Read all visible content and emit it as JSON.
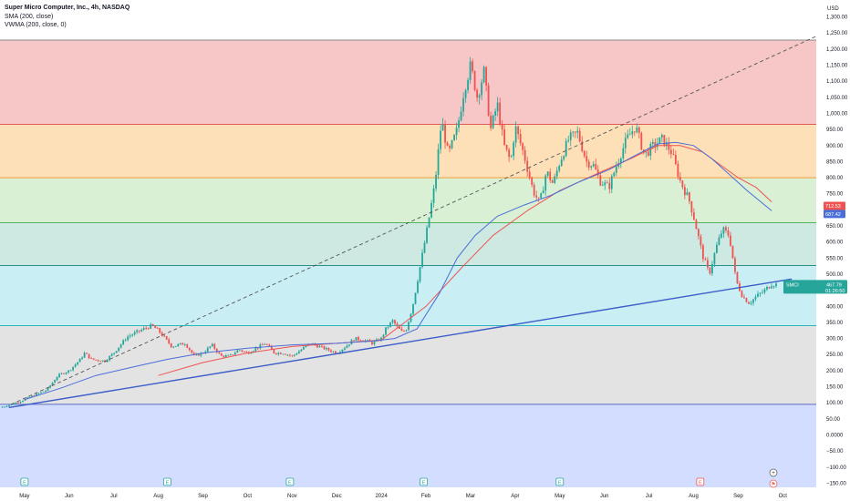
{
  "header": {
    "title": "Super Micro Computer, Inc., 4h, NASDAQ",
    "indicators": [
      "SMA (200, close)",
      "VWMA (200, close, 0)"
    ]
  },
  "colors": {
    "band_top": "#f7c6c7",
    "band_2": "#fde0b8",
    "band_3": "#d9f0d5",
    "band_4": "#cde9e1",
    "band_5": "#c9eef3",
    "band_6": "#e3e3e3",
    "band_bottom": "#d3ddff",
    "line_red": "#e15a5a",
    "line_orange": "#f29d38",
    "line_green": "#54b45c",
    "line_teal": "#2c8f87",
    "line_cyan": "#2bb3c0",
    "line_gray": "#8a8a8a",
    "line_blue": "#5c6bc0",
    "up": "#26a69a",
    "down": "#ef5350",
    "sma": "#ef5350",
    "vwma": "#4a6ed8",
    "trend": "#3d5dc8"
  },
  "chart_data": {
    "type": "candlestick",
    "title": "Super Micro Computer, Inc., 4h, NASDAQ",
    "currency_label": "USD",
    "y_ticks": [
      "1,300.00",
      "1,250.00",
      "1,200.00",
      "1,150.00",
      "1,100.00",
      "1,050.00",
      "1,000.00",
      "950.00",
      "900.00",
      "850.00",
      "800.00",
      "750.00",
      "700.00",
      "650.00",
      "600.00",
      "550.00",
      "500.00",
      "450.00",
      "400.00",
      "350.00",
      "300.00",
      "250.00",
      "200.00",
      "150.00",
      "100.00",
      "50.00",
      "0.0000",
      "−50.00",
      "−100.00",
      "−150.00"
    ],
    "y_tick_values": [
      1300,
      1250,
      1200,
      1150,
      1100,
      1050,
      1000,
      950,
      900,
      850,
      800,
      750,
      700,
      650,
      600,
      550,
      500,
      450,
      400,
      350,
      300,
      250,
      200,
      150,
      100,
      50,
      0,
      -50,
      -100,
      -150
    ],
    "ylim": [
      -163,
      1330
    ],
    "x_ticks": [
      "May",
      "Jun",
      "Jul",
      "Aug",
      "Sep",
      "Oct",
      "Nov",
      "Dec",
      "2024",
      "Feb",
      "Mar",
      "Apr",
      "May",
      "Jun",
      "Jul",
      "Aug",
      "Sep",
      "Oct"
    ],
    "x_tick_t": [
      0,
      1,
      2,
      3,
      4,
      5,
      6,
      7,
      8,
      9,
      10,
      11,
      12,
      13,
      14,
      15,
      16,
      17
    ],
    "xlim": [
      -0.55,
      17.75
    ],
    "fib_levels": [
      1228,
      966,
      800,
      660,
      527,
      340,
      95
    ],
    "price_points": [
      [
        -0.55,
        85
      ],
      [
        -0.3,
        95
      ],
      [
        0,
        110
      ],
      [
        0.25,
        125
      ],
      [
        0.5,
        140
      ],
      [
        0.75,
        185
      ],
      [
        1,
        200
      ],
      [
        1.25,
        235
      ],
      [
        1.35,
        255
      ],
      [
        1.5,
        235
      ],
      [
        1.8,
        230
      ],
      [
        2,
        255
      ],
      [
        2.3,
        305
      ],
      [
        2.6,
        325
      ],
      [
        2.85,
        340
      ],
      [
        3,
        325
      ],
      [
        3.3,
        275
      ],
      [
        3.6,
        285
      ],
      [
        3.8,
        245
      ],
      [
        4,
        255
      ],
      [
        4.2,
        280
      ],
      [
        4.4,
        245
      ],
      [
        4.6,
        245
      ],
      [
        4.8,
        265
      ],
      [
        5,
        255
      ],
      [
        5.2,
        270
      ],
      [
        5.4,
        285
      ],
      [
        5.6,
        255
      ],
      [
        5.8,
        255
      ],
      [
        6,
        245
      ],
      [
        6.2,
        265
      ],
      [
        6.4,
        285
      ],
      [
        6.6,
        275
      ],
      [
        6.8,
        265
      ],
      [
        7,
        255
      ],
      [
        7.2,
        275
      ],
      [
        7.4,
        300
      ],
      [
        7.6,
        295
      ],
      [
        7.8,
        285
      ],
      [
        8,
        300
      ],
      [
        8.1,
        330
      ],
      [
        8.25,
        355
      ],
      [
        8.45,
        320
      ],
      [
        8.55,
        325
      ],
      [
        8.7,
        400
      ],
      [
        8.85,
        510
      ],
      [
        9,
        620
      ],
      [
        9.1,
        700
      ],
      [
        9.2,
        780
      ],
      [
        9.35,
        980
      ],
      [
        9.5,
        870
      ],
      [
        9.7,
        950
      ],
      [
        9.85,
        1070
      ],
      [
        10,
        1150
      ],
      [
        10.15,
        1050
      ],
      [
        10.3,
        1130
      ],
      [
        10.45,
        950
      ],
      [
        10.6,
        1030
      ],
      [
        10.75,
        900
      ],
      [
        10.9,
        850
      ],
      [
        11,
        960
      ],
      [
        11.2,
        870
      ],
      [
        11.4,
        760
      ],
      [
        11.55,
        720
      ],
      [
        11.7,
        820
      ],
      [
        11.85,
        780
      ],
      [
        12,
        850
      ],
      [
        12.2,
        920
      ],
      [
        12.4,
        940
      ],
      [
        12.6,
        850
      ],
      [
        12.75,
        840
      ],
      [
        12.9,
        790
      ],
      [
        13.1,
        770
      ],
      [
        13.3,
        850
      ],
      [
        13.5,
        920
      ],
      [
        13.7,
        960
      ],
      [
        13.9,
        870
      ],
      [
        14.1,
        900
      ],
      [
        14.3,
        920
      ],
      [
        14.5,
        880
      ],
      [
        14.7,
        790
      ],
      [
        14.9,
        730
      ],
      [
        15,
        680
      ],
      [
        15.1,
        620
      ],
      [
        15.2,
        560
      ],
      [
        15.35,
        500
      ],
      [
        15.5,
        580
      ],
      [
        15.65,
        640
      ],
      [
        15.8,
        620
      ],
      [
        15.9,
        530
      ],
      [
        15.95,
        480
      ],
      [
        16.1,
        430
      ],
      [
        16.25,
        410
      ],
      [
        16.4,
        430
      ],
      [
        16.6,
        450
      ],
      [
        16.75,
        470
      ],
      [
        16.85,
        468
      ]
    ],
    "sma": {
      "name": "SMA (200, close)",
      "points": [
        [
          3,
          185
        ],
        [
          4,
          225
        ],
        [
          5,
          255
        ],
        [
          6,
          275
        ],
        [
          7,
          285
        ],
        [
          8,
          295
        ],
        [
          9,
          400
        ],
        [
          9.8,
          520
        ],
        [
          10.5,
          620
        ],
        [
          11.3,
          700
        ],
        [
          12,
          760
        ],
        [
          12.8,
          810
        ],
        [
          13.6,
          860
        ],
        [
          14.2,
          900
        ],
        [
          14.7,
          900
        ],
        [
          15.2,
          880
        ],
        [
          15.6,
          840
        ],
        [
          16,
          800
        ],
        [
          16.4,
          770
        ],
        [
          16.75,
          725
        ]
      ],
      "last_label": "712.53"
    },
    "vwma": {
      "name": "VWMA (200, close, 0)",
      "points": [
        [
          0,
          110
        ],
        [
          0.8,
          145
        ],
        [
          1.6,
          185
        ],
        [
          2.4,
          210
        ],
        [
          3.2,
          235
        ],
        [
          4,
          255
        ],
        [
          5,
          270
        ],
        [
          6,
          280
        ],
        [
          7,
          285
        ],
        [
          7.8,
          292
        ],
        [
          8.3,
          300
        ],
        [
          8.8,
          330
        ],
        [
          9.3,
          440
        ],
        [
          9.7,
          550
        ],
        [
          10.1,
          620
        ],
        [
          10.6,
          680
        ],
        [
          11.2,
          715
        ],
        [
          11.8,
          745
        ],
        [
          12.4,
          785
        ],
        [
          13.1,
          825
        ],
        [
          13.7,
          870
        ],
        [
          14.2,
          905
        ],
        [
          14.6,
          910
        ],
        [
          15,
          900
        ],
        [
          15.4,
          860
        ],
        [
          15.8,
          810
        ],
        [
          16.2,
          760
        ],
        [
          16.75,
          697
        ]
      ],
      "last_label": "687.42"
    },
    "trend_lines": [
      {
        "style": "dashed",
        "from": [
          -0.3,
          95
        ],
        "to": [
          17.75,
          1240
        ]
      },
      {
        "style": "solid",
        "from": [
          -0.35,
          85
        ],
        "to": [
          17.2,
          485
        ]
      }
    ],
    "last_price": {
      "ticker": "SMCI",
      "value": "467.79",
      "countdown": "01:26:50"
    },
    "events": [
      {
        "t": 0,
        "letter": "E"
      },
      {
        "t": 3.2,
        "letter": "E"
      },
      {
        "t": 5.95,
        "letter": "E"
      },
      {
        "t": 8.95,
        "letter": "E"
      },
      {
        "t": 12.0,
        "letter": "E"
      },
      {
        "t": 15.15,
        "letter": "E"
      }
    ],
    "plus_button": "+",
    "flag_glyph": "⚑"
  }
}
